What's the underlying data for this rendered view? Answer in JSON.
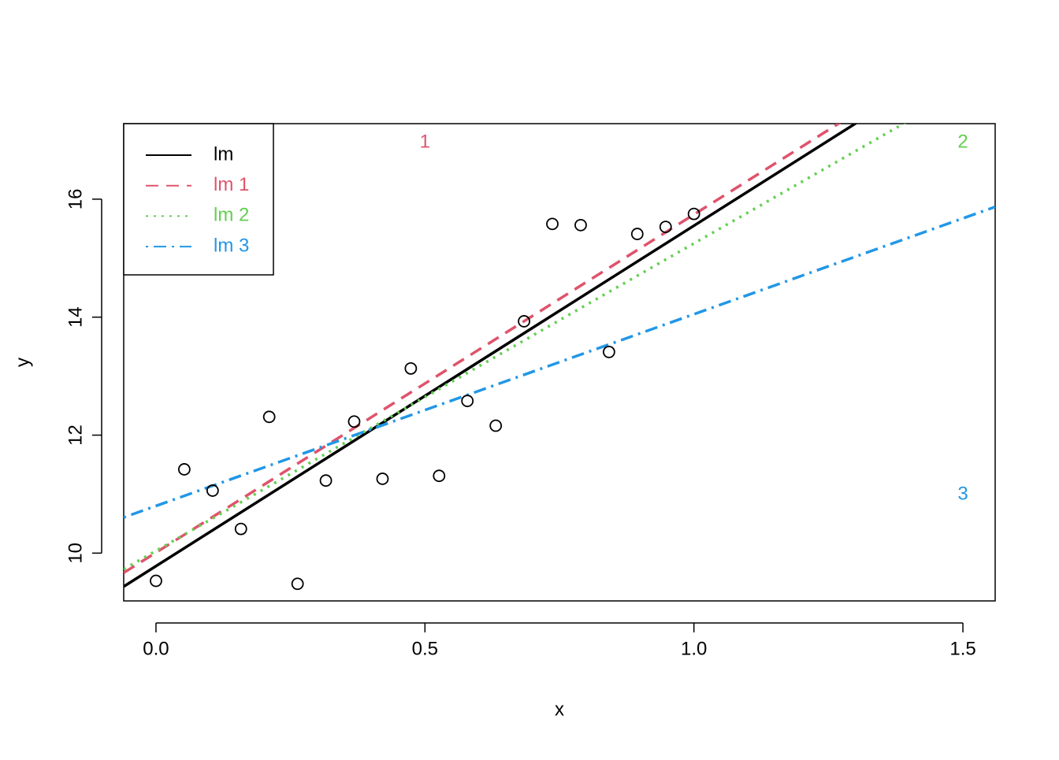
{
  "chart_data": {
    "type": "scatter",
    "xlabel": "x",
    "ylabel": "y",
    "x": [
      0,
      0.0526,
      0.1053,
      0.1579,
      0.2105,
      0.2632,
      0.3158,
      0.3684,
      0.4211,
      0.4737,
      0.5263,
      0.5789,
      0.6316,
      0.6842,
      0.7368,
      0.7895,
      0.8421,
      0.8947,
      0.9474,
      1.0
    ],
    "values": [
      9.53,
      11.42,
      11.06,
      10.41,
      12.31,
      9.48,
      11.23,
      12.23,
      11.26,
      13.13,
      11.31,
      12.58,
      12.16,
      13.93,
      15.58,
      15.56,
      13.41,
      15.41,
      15.53,
      15.75
    ],
    "color": "#000000",
    "xlim": [
      -0.06,
      1.56
    ],
    "xticks": [
      {
        "value": 0,
        "label": "0.0"
      },
      0.5,
      {
        "value": 1,
        "label": "1.0"
      },
      1.5
    ],
    "ylim": [
      9.19,
      17.28
    ],
    "yticks": [
      10,
      12,
      14,
      16
    ],
    "lines": [
      {
        "name": "lm",
        "color": "#000000",
        "dash": "solid",
        "intercept": 9.78,
        "slope": 5.77
      },
      {
        "name": "lm 1",
        "color": "#DF536B",
        "dash": "dashed",
        "intercept": 10.01,
        "slope": 5.73
      },
      {
        "name": "lm 2",
        "color": "#61D04F",
        "dash": "dotted",
        "intercept": 10.04,
        "slope": 5.21
      },
      {
        "name": "lm 3",
        "color": "#2297E6",
        "dash": "dotdash",
        "intercept": 10.8,
        "slope": 3.25
      }
    ],
    "annotations": [
      {
        "text": "1",
        "x": 0.5,
        "y": 16.96,
        "color": "#DF536B"
      },
      {
        "text": "2",
        "x": 1.5,
        "y": 16.96,
        "color": "#61D04F"
      },
      {
        "text": "3",
        "x": 1.5,
        "y": 10.99,
        "color": "#2297E6"
      }
    ],
    "legend": "top-left"
  }
}
